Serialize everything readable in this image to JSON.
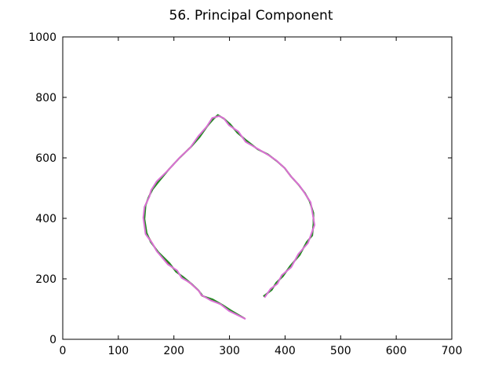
{
  "chart_data": {
    "type": "line",
    "title": "56. Principal Component",
    "xlabel": "",
    "ylabel": "",
    "xlim": [
      0,
      700
    ],
    "ylim": [
      0,
      1000
    ],
    "x_ticks": [
      0,
      100,
      200,
      300,
      400,
      500,
      600,
      700
    ],
    "y_ticks": [
      0,
      200,
      400,
      600,
      800,
      1000
    ],
    "grid": false,
    "series": [
      {
        "color": "#b22222",
        "x": [
          328,
          300,
          285,
          268,
          250,
          245,
          230,
          215,
          205,
          190,
          170,
          160,
          150,
          146,
          148,
          155,
          160,
          170,
          190,
          210,
          230,
          245,
          260,
          270,
          280,
          290,
          300,
          315,
          330,
          350,
          370,
          385,
          400,
          410,
          425,
          435,
          445,
          450,
          452,
          448,
          440,
          425,
          410,
          395,
          385,
          375,
          362
        ],
        "y": [
          68,
          95,
          115,
          130,
          145,
          160,
          185,
          205,
          225,
          250,
          290,
          320,
          350,
          400,
          440,
          470,
          495,
          520,
          560,
          600,
          635,
          670,
          705,
          730,
          740,
          730,
          710,
          685,
          655,
          630,
          610,
          590,
          565,
          540,
          510,
          485,
          455,
          420,
          380,
          345,
          320,
          280,
          240,
          210,
          185,
          165,
          140
        ]
      },
      {
        "color": "#228b22",
        "x": [
          327,
          302,
          287,
          270,
          252,
          244,
          232,
          216,
          204,
          192,
          172,
          158,
          151,
          147,
          149,
          154,
          162,
          171,
          191,
          209,
          231,
          246,
          261,
          271,
          279,
          291,
          301,
          314,
          331,
          351,
          369,
          386,
          399,
          411,
          424,
          436,
          444,
          451,
          451,
          449,
          439,
          426,
          409,
          396,
          384,
          376,
          361
        ],
        "y": [
          69,
          96,
          114,
          132,
          143,
          162,
          183,
          207,
          223,
          252,
          288,
          322,
          352,
          398,
          442,
          468,
          497,
          518,
          562,
          598,
          637,
          668,
          707,
          728,
          742,
          728,
          712,
          683,
          657,
          628,
          612,
          588,
          567,
          538,
          512,
          483,
          457,
          418,
          382,
          343,
          322,
          278,
          242,
          208,
          187,
          163,
          142
        ]
      },
      {
        "color": "#da70d6",
        "x": [
          329,
          299,
          284,
          267,
          249,
          246,
          229,
          214,
          206,
          189,
          169,
          161,
          149,
          145,
          147,
          156,
          159,
          169,
          189,
          211,
          229,
          244,
          259,
          269,
          281,
          289,
          299,
          316,
          329,
          349,
          371,
          384,
          401,
          409,
          426,
          434,
          446,
          449,
          453,
          447,
          441,
          424,
          411,
          394,
          386,
          374,
          363
        ],
        "y": [
          67,
          94,
          116,
          128,
          147,
          158,
          187,
          203,
          227,
          248,
          292,
          318,
          348,
          402,
          438,
          472,
          493,
          522,
          558,
          602,
          633,
          672,
          703,
          732,
          738,
          732,
          708,
          687,
          653,
          632,
          608,
          592,
          563,
          542,
          508,
          487,
          453,
          422,
          378,
          347,
          318,
          282,
          238,
          212,
          183,
          167,
          138
        ]
      }
    ]
  }
}
